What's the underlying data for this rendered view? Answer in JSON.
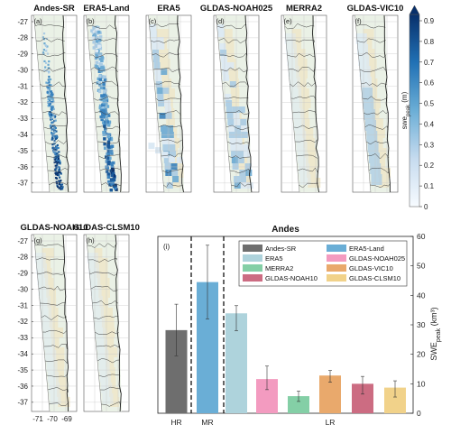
{
  "figure": {
    "colors": {
      "land": "#eaf1e6",
      "tan": "#eee6c8",
      "snow_light": "#c7dcec",
      "snow_mid": "#6aa9d2",
      "snow_dark": "#08306b",
      "grid": "#c8c8c8",
      "border": "#222222",
      "river": "#3d3d3d"
    }
  },
  "maps": {
    "lat_ticks": [
      "-27",
      "-28",
      "-29",
      "-30",
      "-31",
      "-32",
      "-33",
      "-34",
      "-35",
      "-36",
      "-37"
    ],
    "lon_ticks": [
      "-71",
      "-70",
      "-69"
    ],
    "panels": [
      {
        "letter": "(a)",
        "title": "Andes-SR",
        "pattern": "fine",
        "intensity": 1.0
      },
      {
        "letter": "(b)",
        "title": "ERA5-Land",
        "pattern": "band",
        "intensity": 1.0
      },
      {
        "letter": "(c)",
        "title": "ERA5",
        "pattern": "blocky",
        "intensity": 0.55
      },
      {
        "letter": "(d)",
        "title": "GLDAS-NOAH025",
        "pattern": "blocky",
        "intensity": 0.3
      },
      {
        "letter": "(e)",
        "title": "MERRA2",
        "pattern": "coarse",
        "intensity": 0.05
      },
      {
        "letter": "(f)",
        "title": "GLDAS-VIC10",
        "pattern": "coarse",
        "intensity": 0.18
      },
      {
        "letter": "(g)",
        "title": "GLDAS-NOAH10",
        "pattern": "coarse",
        "intensity": 0.08
      },
      {
        "letter": "(h)",
        "title": "GLDAS-CLSM10",
        "pattern": "coarse",
        "intensity": 0.05
      }
    ]
  },
  "colorbar": {
    "label": "swe_peak (m)",
    "label_main": "swe",
    "label_sub": "peak",
    "label_unit": "(m)",
    "ticks": [
      "0",
      "0.1",
      "0.2",
      "0.3",
      "0.4",
      "0.5",
      "0.6",
      "0.7",
      "0.8",
      "0.9"
    ],
    "range": [
      0,
      0.9
    ]
  },
  "chart_data": {
    "type": "bar",
    "title": "Andes",
    "panel_letter": "(i)",
    "ylabel_main": "SWE",
    "ylabel_sub": "peak",
    "ylabel_unit": "(km³)",
    "ylim": [
      0,
      60
    ],
    "yticks": [
      0,
      10,
      20,
      30,
      40,
      50,
      60
    ],
    "groups": [
      {
        "label": "HR",
        "members": [
          "Andes-SR"
        ]
      },
      {
        "label": "MR",
        "members": [
          "ERA5-Land"
        ]
      },
      {
        "label": "LR",
        "members": [
          "ERA5",
          "GLDAS-NOAH025",
          "MERRA2",
          "GLDAS-VIC10",
          "GLDAS-NOAH10",
          "GLDAS-CLSM10"
        ]
      }
    ],
    "series": [
      {
        "name": "Andes-SR",
        "value": 28.2,
        "err_low": 19.5,
        "err_high": 37.0,
        "color": "#6e6e6e"
      },
      {
        "name": "ERA5-Land",
        "value": 44.5,
        "err_low": 32.0,
        "err_high": 57.0,
        "color": "#6aaed6"
      },
      {
        "name": "ERA5",
        "value": 33.9,
        "err_low": 28.0,
        "err_high": 36.5,
        "color": "#aed3dc"
      },
      {
        "name": "GLDAS-NOAH025",
        "value": 11.6,
        "err_low": 8.0,
        "err_high": 16.0,
        "color": "#f39bc0"
      },
      {
        "name": "MERRA2",
        "value": 5.8,
        "err_low": 4.0,
        "err_high": 7.5,
        "color": "#84cfa6"
      },
      {
        "name": "GLDAS-VIC10",
        "value": 12.8,
        "err_low": 10.5,
        "err_high": 14.5,
        "color": "#e9a96c"
      },
      {
        "name": "GLDAS-NOAH10",
        "value": 10.0,
        "err_low": 6.5,
        "err_high": 12.5,
        "color": "#cc6c82"
      },
      {
        "name": "GLDAS-CLSM10",
        "value": 8.7,
        "err_low": 5.5,
        "err_high": 11.0,
        "color": "#f1d28a"
      }
    ],
    "legend_placement": "top"
  }
}
